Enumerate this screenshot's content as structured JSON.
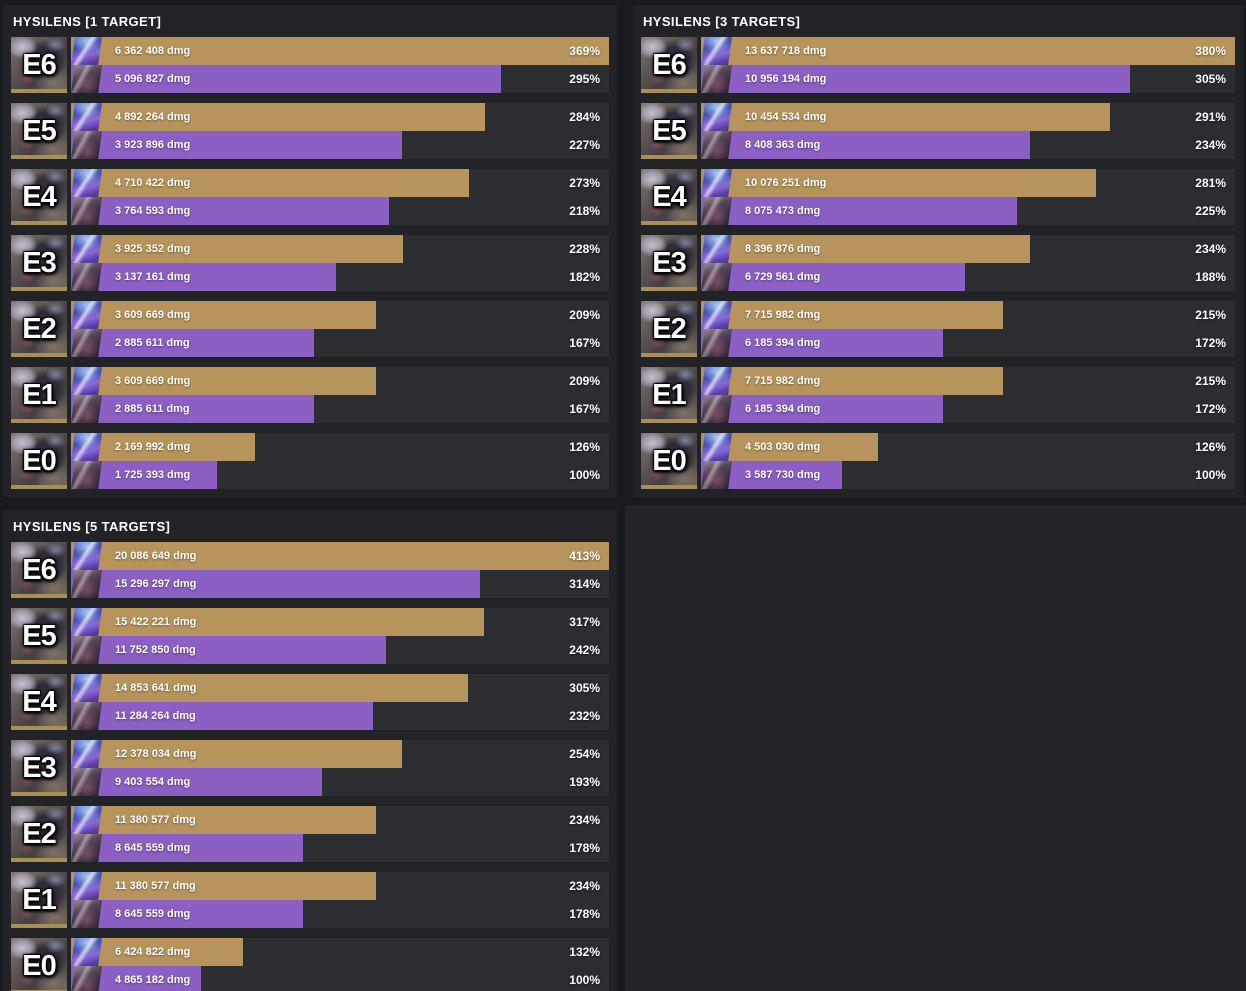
{
  "colors": {
    "gold_bar": "#b6945c",
    "purple_bar": "#8b5fc3",
    "row_strip": "#2b2d31",
    "panel_bg": "#222327",
    "page_bg": "#232428",
    "frame_gap": "#1a1b1e",
    "rarity_strip": "#a98f55"
  },
  "icons": {
    "signature_lightcone": "sig-lightcone-thumb",
    "alternate_lightcone": "alt-lightcone-thumb"
  },
  "panels": [
    {
      "title": "HYSILENS [1 TARGET]",
      "rows": [
        {
          "eidolon": "E6",
          "gold": {
            "dmg": "6 362 408 dmg",
            "pct": "369%",
            "pct_value": 369
          },
          "purple": {
            "dmg": "5 096 827 dmg",
            "pct": "295%",
            "pct_value": 295
          }
        },
        {
          "eidolon": "E5",
          "gold": {
            "dmg": "4 892 264 dmg",
            "pct": "284%",
            "pct_value": 284
          },
          "purple": {
            "dmg": "3 923 896 dmg",
            "pct": "227%",
            "pct_value": 227
          }
        },
        {
          "eidolon": "E4",
          "gold": {
            "dmg": "4 710 422 dmg",
            "pct": "273%",
            "pct_value": 273
          },
          "purple": {
            "dmg": "3 764 593 dmg",
            "pct": "218%",
            "pct_value": 218
          }
        },
        {
          "eidolon": "E3",
          "gold": {
            "dmg": "3 925 352 dmg",
            "pct": "228%",
            "pct_value": 228
          },
          "purple": {
            "dmg": "3 137 161 dmg",
            "pct": "182%",
            "pct_value": 182
          }
        },
        {
          "eidolon": "E2",
          "gold": {
            "dmg": "3 609 669 dmg",
            "pct": "209%",
            "pct_value": 209
          },
          "purple": {
            "dmg": "2 885 611 dmg",
            "pct": "167%",
            "pct_value": 167
          }
        },
        {
          "eidolon": "E1",
          "gold": {
            "dmg": "3 609 669 dmg",
            "pct": "209%",
            "pct_value": 209
          },
          "purple": {
            "dmg": "2 885 611 dmg",
            "pct": "167%",
            "pct_value": 167
          }
        },
        {
          "eidolon": "E0",
          "gold": {
            "dmg": "2 169 992 dmg",
            "pct": "126%",
            "pct_value": 126
          },
          "purple": {
            "dmg": "1 725 393 dmg",
            "pct": "100%",
            "pct_value": 100
          }
        }
      ]
    },
    {
      "title": "HYSILENS [3 TARGETS]",
      "rows": [
        {
          "eidolon": "E6",
          "gold": {
            "dmg": "13 637 718 dmg",
            "pct": "380%",
            "pct_value": 380
          },
          "purple": {
            "dmg": "10 956 194 dmg",
            "pct": "305%",
            "pct_value": 305
          }
        },
        {
          "eidolon": "E5",
          "gold": {
            "dmg": "10 454 534 dmg",
            "pct": "291%",
            "pct_value": 291
          },
          "purple": {
            "dmg": "8 408 363 dmg",
            "pct": "234%",
            "pct_value": 234
          }
        },
        {
          "eidolon": "E4",
          "gold": {
            "dmg": "10 076 251 dmg",
            "pct": "281%",
            "pct_value": 281
          },
          "purple": {
            "dmg": "8 075 473 dmg",
            "pct": "225%",
            "pct_value": 225
          }
        },
        {
          "eidolon": "E3",
          "gold": {
            "dmg": "8 396 876 dmg",
            "pct": "234%",
            "pct_value": 234
          },
          "purple": {
            "dmg": "6 729 561 dmg",
            "pct": "188%",
            "pct_value": 188
          }
        },
        {
          "eidolon": "E2",
          "gold": {
            "dmg": "7 715 982 dmg",
            "pct": "215%",
            "pct_value": 215
          },
          "purple": {
            "dmg": "6 185 394 dmg",
            "pct": "172%",
            "pct_value": 172
          }
        },
        {
          "eidolon": "E1",
          "gold": {
            "dmg": "7 715 982 dmg",
            "pct": "215%",
            "pct_value": 215
          },
          "purple": {
            "dmg": "6 185 394 dmg",
            "pct": "172%",
            "pct_value": 172
          }
        },
        {
          "eidolon": "E0",
          "gold": {
            "dmg": "4 503 030 dmg",
            "pct": "126%",
            "pct_value": 126
          },
          "purple": {
            "dmg": "3 587 730 dmg",
            "pct": "100%",
            "pct_value": 100
          }
        }
      ]
    },
    {
      "title": "HYSILENS [5 TARGETS]",
      "rows": [
        {
          "eidolon": "E6",
          "gold": {
            "dmg": "20 086 649 dmg",
            "pct": "413%",
            "pct_value": 413
          },
          "purple": {
            "dmg": "15 296 297 dmg",
            "pct": "314%",
            "pct_value": 314
          }
        },
        {
          "eidolon": "E5",
          "gold": {
            "dmg": "15 422 221 dmg",
            "pct": "317%",
            "pct_value": 317
          },
          "purple": {
            "dmg": "11 752 850 dmg",
            "pct": "242%",
            "pct_value": 242
          }
        },
        {
          "eidolon": "E4",
          "gold": {
            "dmg": "14 853 641 dmg",
            "pct": "305%",
            "pct_value": 305
          },
          "purple": {
            "dmg": "11 284 264 dmg",
            "pct": "232%",
            "pct_value": 232
          }
        },
        {
          "eidolon": "E3",
          "gold": {
            "dmg": "12 378 034 dmg",
            "pct": "254%",
            "pct_value": 254
          },
          "purple": {
            "dmg": "9 403 554 dmg",
            "pct": "193%",
            "pct_value": 193
          }
        },
        {
          "eidolon": "E2",
          "gold": {
            "dmg": "11 380 577 dmg",
            "pct": "234%",
            "pct_value": 234
          },
          "purple": {
            "dmg": "8 645 559 dmg",
            "pct": "178%",
            "pct_value": 178
          }
        },
        {
          "eidolon": "E1",
          "gold": {
            "dmg": "11 380 577 dmg",
            "pct": "234%",
            "pct_value": 234
          },
          "purple": {
            "dmg": "8 645 559 dmg",
            "pct": "178%",
            "pct_value": 178
          }
        },
        {
          "eidolon": "E0",
          "gold": {
            "dmg": "6 424 822 dmg",
            "pct": "132%",
            "pct_value": 132
          },
          "purple": {
            "dmg": "4 865 182 dmg",
            "pct": "100%",
            "pct_value": 100
          }
        }
      ]
    }
  ],
  "chart_data": [
    {
      "type": "bar",
      "orientation": "horizontal",
      "title": "HYSILENS [1 TARGET]",
      "categories": [
        "E6",
        "E5",
        "E4",
        "E3",
        "E2",
        "E1",
        "E0"
      ],
      "series": [
        {
          "name": "gold_bar",
          "dmg": [
            6362408,
            4892264,
            4710422,
            3925352,
            3609669,
            3609669,
            2169992
          ],
          "pct": [
            369,
            284,
            273,
            228,
            209,
            209,
            126
          ]
        },
        {
          "name": "purple_bar",
          "dmg": [
            5096827,
            3923896,
            3764593,
            3137161,
            2885611,
            2885611,
            1725393
          ],
          "pct": [
            295,
            227,
            218,
            182,
            167,
            167,
            100
          ]
        }
      ],
      "xlabel": "",
      "ylabel": "",
      "baseline_pct": 100,
      "max_pct": 369,
      "grid": false,
      "legend": "none"
    },
    {
      "type": "bar",
      "orientation": "horizontal",
      "title": "HYSILENS [3 TARGETS]",
      "categories": [
        "E6",
        "E5",
        "E4",
        "E3",
        "E2",
        "E1",
        "E0"
      ],
      "series": [
        {
          "name": "gold_bar",
          "dmg": [
            13637718,
            10454534,
            10076251,
            8396876,
            7715982,
            7715982,
            4503030
          ],
          "pct": [
            380,
            291,
            281,
            234,
            215,
            215,
            126
          ]
        },
        {
          "name": "purple_bar",
          "dmg": [
            10956194,
            8408363,
            8075473,
            6729561,
            6185394,
            6185394,
            3587730
          ],
          "pct": [
            305,
            234,
            225,
            188,
            172,
            172,
            100
          ]
        }
      ],
      "xlabel": "",
      "ylabel": "",
      "baseline_pct": 100,
      "max_pct": 380,
      "grid": false,
      "legend": "none"
    },
    {
      "type": "bar",
      "orientation": "horizontal",
      "title": "HYSILENS [5 TARGETS]",
      "categories": [
        "E6",
        "E5",
        "E4",
        "E3",
        "E2",
        "E1",
        "E0"
      ],
      "series": [
        {
          "name": "gold_bar",
          "dmg": [
            20086649,
            15422221,
            14853641,
            12378034,
            11380577,
            11380577,
            6424822
          ],
          "pct": [
            413,
            317,
            305,
            254,
            234,
            234,
            132
          ]
        },
        {
          "name": "purple_bar",
          "dmg": [
            15296297,
            11752850,
            11284264,
            9403554,
            8645559,
            8645559,
            4865182
          ],
          "pct": [
            314,
            242,
            232,
            193,
            178,
            178,
            100
          ]
        }
      ],
      "xlabel": "",
      "ylabel": "",
      "baseline_pct": 100,
      "max_pct": 413,
      "grid": false,
      "legend": "none"
    }
  ]
}
